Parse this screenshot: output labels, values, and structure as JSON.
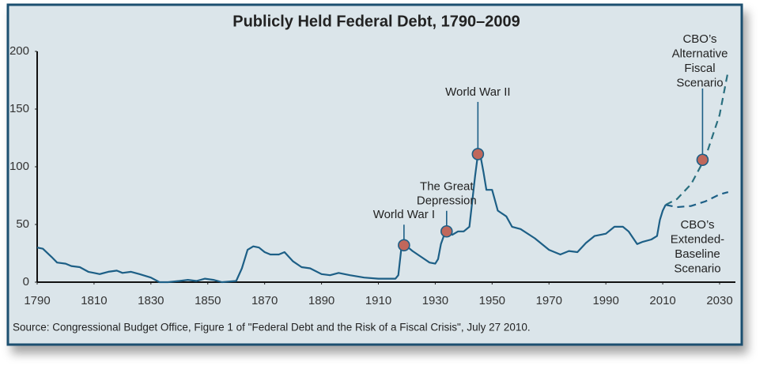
{
  "chart_data": {
    "type": "line",
    "title": "Publicly Held Federal Debt, 1790–2009",
    "source": "Source: Congressional Budget Office, Figure 1 of \"Federal Debt and the Risk of a Fiscal Crisis\", July 27 2010.",
    "xlim": [
      1790,
      2030
    ],
    "xticks": [
      1790,
      1810,
      1830,
      1850,
      1870,
      1890,
      1910,
      1930,
      1950,
      1970,
      1990,
      2010,
      2030
    ],
    "ylim": [
      0,
      200
    ],
    "yticks": [
      0,
      50,
      100,
      150,
      200
    ],
    "series": [
      {
        "color": "#1d5f86",
        "dashed": false,
        "x": [
          1790,
          1792,
          1795,
          1797,
          1800,
          1802,
          1805,
          1808,
          1810,
          1812,
          1815,
          1818,
          1820,
          1823,
          1826,
          1830,
          1833,
          1836,
          1840,
          1843,
          1846,
          1849,
          1852,
          1855,
          1860,
          1862,
          1864,
          1866,
          1868,
          1870,
          1872,
          1875,
          1877,
          1880,
          1883,
          1886,
          1890,
          1893,
          1896,
          1900,
          1905,
          1910,
          1914,
          1916,
          1917,
          1918,
          1919,
          1920,
          1922,
          1925,
          1928,
          1930,
          1931,
          1932,
          1933,
          1934,
          1936,
          1938,
          1940,
          1942,
          1943,
          1944,
          1945,
          1946,
          1947,
          1948,
          1950,
          1952,
          1955,
          1957,
          1960,
          1965,
          1970,
          1974,
          1977,
          1980,
          1983,
          1986,
          1990,
          1993,
          1996,
          1998,
          2001,
          2003,
          2006,
          2008,
          2009,
          2010,
          2011
        ],
        "values": [
          30,
          29,
          22,
          17,
          16,
          14,
          13,
          9,
          8,
          7,
          9,
          10,
          8,
          9,
          7,
          4,
          0,
          0,
          1,
          2,
          1,
          3,
          2,
          0,
          1,
          12,
          28,
          31,
          30,
          26,
          24,
          24,
          26,
          18,
          13,
          12,
          7,
          6,
          8,
          6,
          4,
          3,
          3,
          3,
          6,
          28,
          32,
          31,
          27,
          22,
          17,
          16,
          20,
          33,
          40,
          44,
          41,
          44,
          44,
          48,
          70,
          92,
          111,
          108,
          95,
          80,
          80,
          62,
          57,
          48,
          46,
          38,
          28,
          24,
          27,
          26,
          34,
          40,
          42,
          48,
          48,
          44,
          33,
          35,
          37,
          40,
          54,
          62,
          67
        ]
      },
      {
        "color": "#2a6f7f",
        "dashed": true,
        "label": [
          "CBO’s",
          "Alternative",
          "Fiscal",
          "Scenario"
        ],
        "x": [
          2011,
          2015,
          2020,
          2025,
          2030,
          2033
        ],
        "values": [
          67,
          72,
          85,
          108,
          145,
          183
        ]
      },
      {
        "color": "#1d5f86",
        "dashed": true,
        "label": [
          "CBO’s",
          "Extended-",
          "Baseline",
          "Scenario"
        ],
        "x": [
          2011,
          2015,
          2020,
          2025,
          2030,
          2033
        ],
        "values": [
          67,
          65,
          66,
          70,
          76,
          78
        ]
      }
    ],
    "annotations": [
      {
        "label": [
          "World War I"
        ],
        "x": 1919,
        "value": 32
      },
      {
        "label": [
          "The Great",
          "Depression"
        ],
        "x": 1934,
        "value": 44
      },
      {
        "label": [
          "World War II"
        ],
        "x": 1945,
        "value": 111
      },
      {
        "x": 2024,
        "value": 106
      }
    ]
  }
}
